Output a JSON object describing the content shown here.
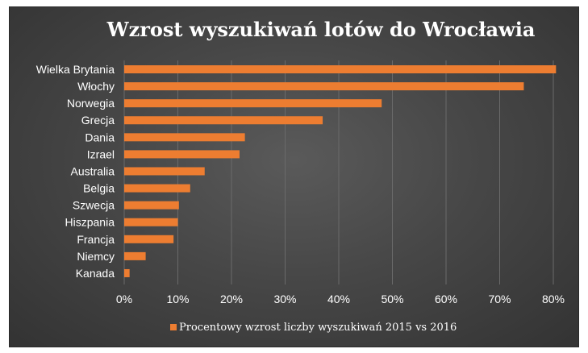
{
  "chart_data": {
    "type": "bar",
    "orientation": "horizontal",
    "title": "Wzrost wyszukiwań lotów do Wrocławia",
    "categories": [
      "Wielka Brytania",
      "Włochy",
      "Norwegia",
      "Grecja",
      "Dania",
      "Izrael",
      "Australia",
      "Belgia",
      "Szwecja",
      "Hiszpania",
      "Francja",
      "Niemcy",
      "Kanada"
    ],
    "series": [
      {
        "name": "Procentowy wzrost liczby wyszukiwań 2015 vs 2016",
        "values": [
          80.5,
          74.5,
          48,
          37,
          22.5,
          21.5,
          15,
          12.3,
          10.2,
          10,
          9.2,
          4,
          1
        ],
        "color": "#ed7d31"
      }
    ],
    "xlim": [
      0,
      80
    ],
    "xticks": [
      "0%",
      "10%",
      "20%",
      "30%",
      "40%",
      "50%",
      "60%",
      "70%",
      "80%"
    ],
    "xtick_values": [
      0,
      10,
      20,
      30,
      40,
      50,
      60,
      70,
      80
    ],
    "grid": true,
    "legend": "bottom",
    "background": "#474747",
    "text_color": "#ffffff"
  }
}
